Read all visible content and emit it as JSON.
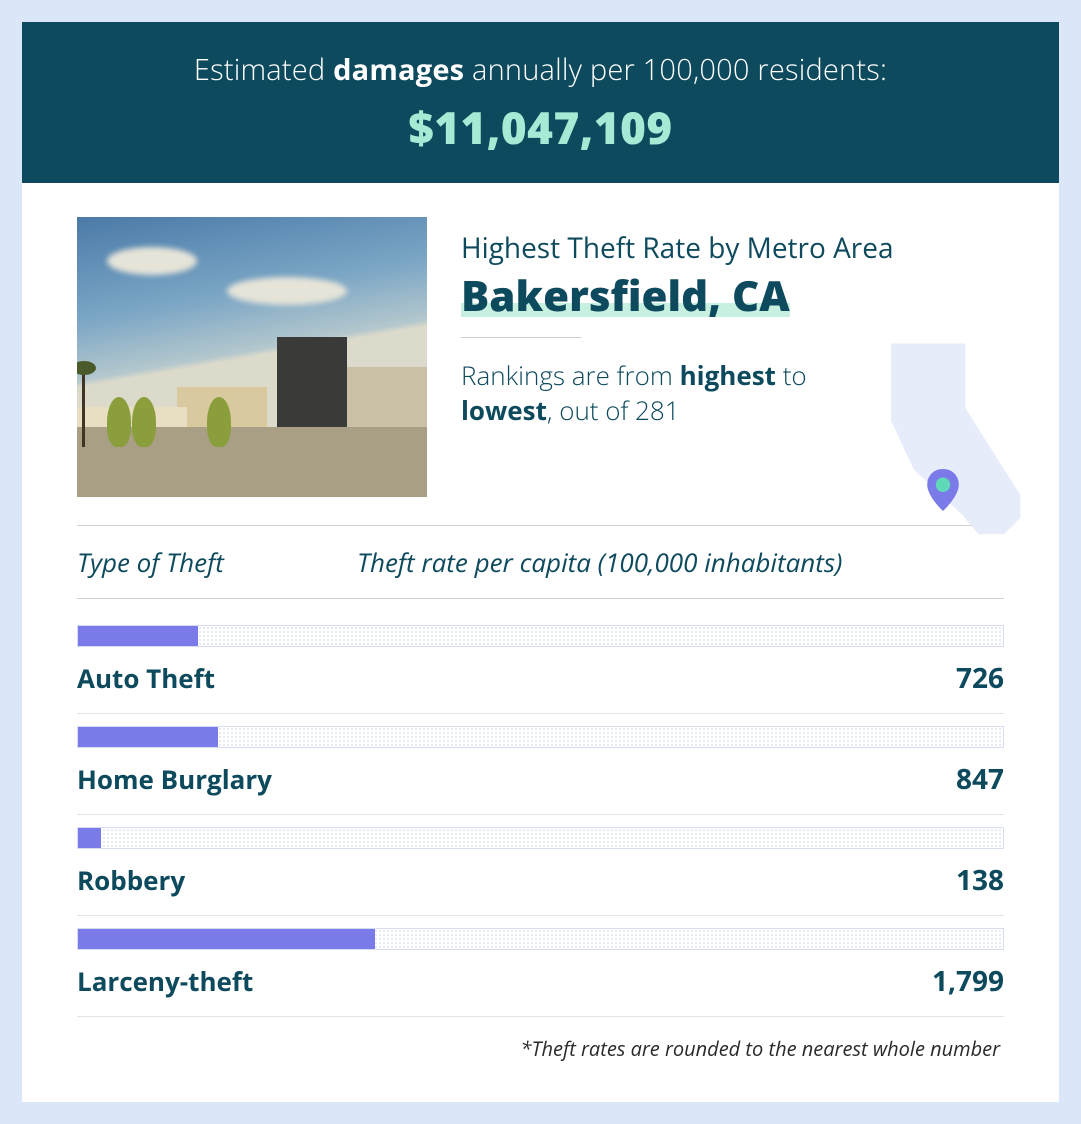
{
  "header": {
    "title_pre": "Estimated ",
    "title_strong": "damages",
    "title_post": " annually per 100,000 residents:",
    "amount": "$11,047,109",
    "banner_bg": "#0e4a5d",
    "title_color": "#ffffff",
    "amount_color": "#a7e9d4",
    "title_fontsize": 29,
    "amount_fontsize": 44
  },
  "info": {
    "subtitle": "Highest Theft Rate by Metro Area",
    "city": "Bakersfield, CA",
    "rankings_pre": "Rankings are from ",
    "rankings_s1": "highest",
    "rankings_mid": " to ",
    "rankings_s2": "lowest",
    "rankings_post": ", out of 281",
    "highlight_color": "#c8f0e0",
    "text_color": "#0e4a5d",
    "state_fill": "#e6ecf9",
    "pin_fill": "#7a7ae8",
    "pin_inner": "#5fd9b7"
  },
  "table": {
    "col1": "Type of Theft",
    "col2": "Theft rate per capita (100,000 inhabitants)",
    "max_scale": 5600,
    "bar_color": "#7a7ae8",
    "track_dot_color": "#9bb0e0",
    "border_color": "#d0d0d0",
    "rows": [
      {
        "label": "Auto Theft",
        "value": 726,
        "display": "726"
      },
      {
        "label": "Home Burglary",
        "value": 847,
        "display": "847"
      },
      {
        "label": "Robbery",
        "value": 138,
        "display": "138"
      },
      {
        "label": "Larceny-theft",
        "value": 1799,
        "display": "1,799"
      }
    ]
  },
  "footnote": "*Theft rates are rounded to the nearest whole number",
  "page": {
    "bg": "#dbe7f8",
    "card_bg": "#ffffff"
  }
}
